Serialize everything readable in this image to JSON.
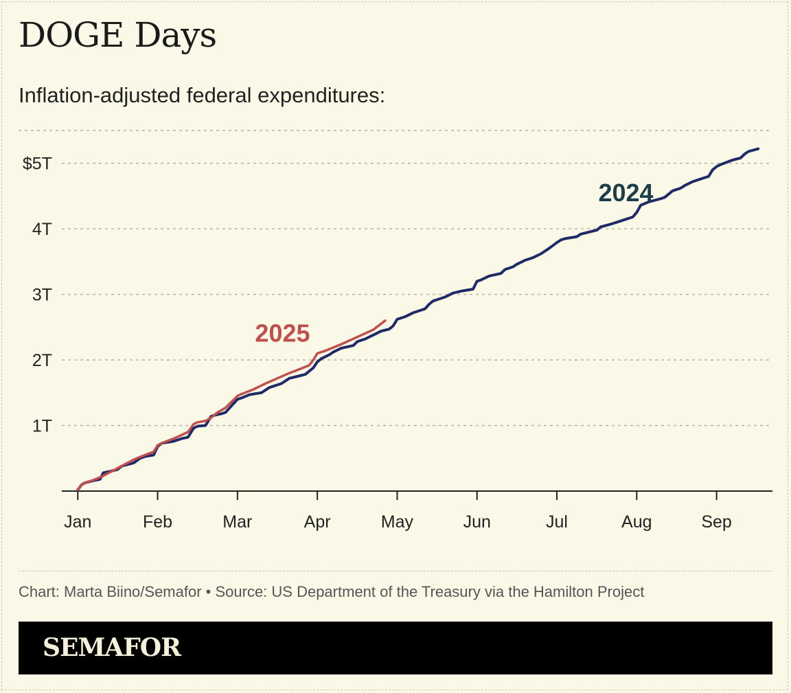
{
  "title": "DOGE Days",
  "subtitle": "Inflation-adjusted federal expenditures:",
  "credit": "Chart: Marta Biino/Semafor • Source: US Department of the Treasury via the Hamilton Project",
  "brand": "SEMAFOR",
  "colors": {
    "background": "#faf8e6",
    "series_2024": "#1f2a66",
    "series_2025": "#c0504d",
    "label_2024": "#1d3d4a",
    "gridline": "#b5b3a5"
  },
  "chart_data": {
    "type": "line",
    "title": "DOGE Days",
    "subtitle": "Inflation-adjusted federal expenditures:",
    "xlabel": "",
    "ylabel": "",
    "x_unit": "month (0 = Jan 1)",
    "xlim": [
      -0.2,
      8.7
    ],
    "ylim": [
      0,
      5.5
    ],
    "x_ticks": [
      0,
      1,
      2,
      3,
      4,
      5,
      6,
      7,
      8
    ],
    "x_tick_labels": [
      "Jan",
      "Feb",
      "Mar",
      "Apr",
      "May",
      "Jun",
      "Jul",
      "Aug",
      "Sep"
    ],
    "y_ticks": [
      1,
      2,
      3,
      4,
      5
    ],
    "y_tick_labels": [
      "1T",
      "2T",
      "3T",
      "4T",
      "$5T"
    ],
    "grid": true,
    "series": [
      {
        "name": "2024",
        "x": [
          0,
          0.05,
          0.1,
          0.2,
          0.28,
          0.32,
          0.4,
          0.5,
          0.55,
          0.7,
          0.78,
          0.85,
          0.95,
          1.0,
          1.05,
          1.1,
          1.2,
          1.3,
          1.38,
          1.45,
          1.5,
          1.6,
          1.67,
          1.72,
          1.8,
          1.85,
          2.0,
          2.05,
          2.15,
          2.2,
          2.3,
          2.4,
          2.5,
          2.55,
          2.65,
          2.75,
          2.85,
          2.95,
          3.0,
          3.05,
          3.15,
          3.2,
          3.3,
          3.45,
          3.5,
          3.6,
          3.7,
          3.8,
          3.9,
          3.95,
          4.0,
          4.05,
          4.1,
          4.2,
          4.35,
          4.4,
          4.45,
          4.6,
          4.7,
          4.8,
          4.95,
          5.0,
          5.05,
          5.15,
          5.3,
          5.35,
          5.45,
          5.5,
          5.6,
          5.7,
          5.8,
          5.9,
          6.0,
          6.05,
          6.1,
          6.25,
          6.3,
          6.5,
          6.55,
          6.7,
          6.8,
          6.95,
          7.0,
          7.05,
          7.15,
          7.3,
          7.35,
          7.45,
          7.55,
          7.6,
          7.7,
          7.8,
          7.9,
          7.95,
          8.0,
          8.05,
          8.2,
          8.3,
          8.35,
          8.4,
          8.52
        ],
        "values": [
          0.02,
          0.1,
          0.13,
          0.16,
          0.18,
          0.28,
          0.3,
          0.33,
          0.38,
          0.43,
          0.5,
          0.53,
          0.55,
          0.68,
          0.73,
          0.74,
          0.76,
          0.8,
          0.82,
          0.96,
          0.99,
          1.0,
          1.14,
          1.16,
          1.18,
          1.2,
          1.4,
          1.42,
          1.47,
          1.48,
          1.5,
          1.58,
          1.62,
          1.64,
          1.72,
          1.75,
          1.78,
          1.88,
          1.97,
          2.02,
          2.08,
          2.12,
          2.18,
          2.22,
          2.28,
          2.32,
          2.38,
          2.44,
          2.47,
          2.52,
          2.62,
          2.64,
          2.66,
          2.72,
          2.78,
          2.85,
          2.9,
          2.96,
          3.02,
          3.05,
          3.08,
          3.2,
          3.22,
          3.28,
          3.32,
          3.38,
          3.42,
          3.46,
          3.52,
          3.56,
          3.62,
          3.7,
          3.79,
          3.83,
          3.85,
          3.88,
          3.92,
          3.98,
          4.03,
          4.08,
          4.12,
          4.18,
          4.25,
          4.36,
          4.41,
          4.46,
          4.48,
          4.58,
          4.62,
          4.66,
          4.72,
          4.76,
          4.8,
          4.9,
          4.95,
          4.98,
          5.05,
          5.08,
          5.14,
          5.18,
          5.22
        ]
      },
      {
        "name": "2025",
        "x": [
          0,
          0.05,
          0.1,
          0.2,
          0.3,
          0.5,
          0.7,
          0.8,
          0.95,
          1.0,
          1.05,
          1.2,
          1.38,
          1.45,
          1.5,
          1.6,
          1.67,
          1.75,
          1.85,
          2.0,
          2.05,
          2.2,
          2.35,
          2.5,
          2.65,
          2.8,
          2.9,
          2.95,
          3.0,
          3.1,
          3.3,
          3.5,
          3.7,
          3.85
        ],
        "values": [
          0.02,
          0.1,
          0.13,
          0.17,
          0.22,
          0.35,
          0.48,
          0.53,
          0.6,
          0.7,
          0.73,
          0.8,
          0.9,
          1.02,
          1.05,
          1.07,
          1.12,
          1.2,
          1.27,
          1.45,
          1.48,
          1.55,
          1.64,
          1.72,
          1.8,
          1.87,
          1.92,
          2.0,
          2.1,
          2.14,
          2.24,
          2.35,
          2.46,
          2.6
        ]
      }
    ],
    "annotations": [
      {
        "text": "2024",
        "series": "2024"
      },
      {
        "text": "2025",
        "series": "2025"
      }
    ]
  }
}
